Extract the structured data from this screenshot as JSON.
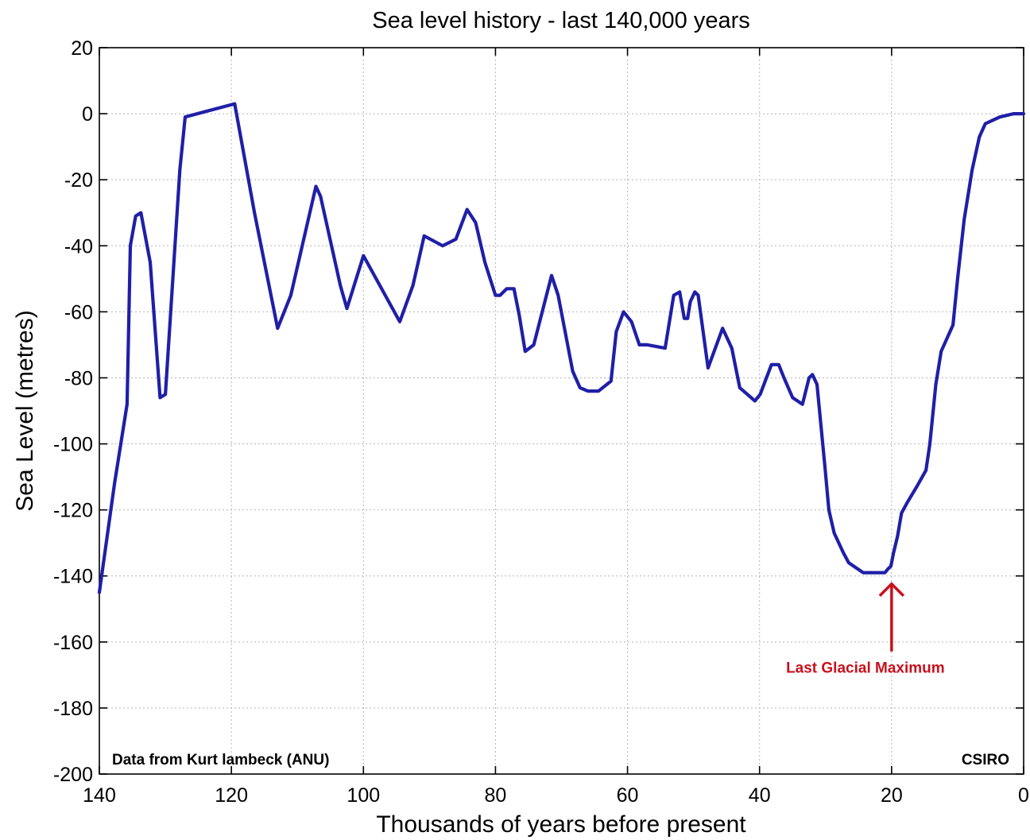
{
  "chart_data": {
    "type": "line",
    "title": "Sea level history - last 140,000 years",
    "xlabel": "Thousands of years before present",
    "ylabel": "Sea Level (metres)",
    "xlim": [
      140,
      0
    ],
    "ylim": [
      -200,
      20
    ],
    "x_ticks": [
      140,
      120,
      100,
      80,
      60,
      40,
      20,
      0
    ],
    "y_ticks": [
      20,
      0,
      -20,
      -40,
      -60,
      -80,
      -100,
      -120,
      -140,
      -160,
      -180,
      -200
    ],
    "grid": true,
    "series": [
      {
        "color": "#1f1fa8",
        "x": [
          140,
          137.7,
          136.2,
          135.8,
          135.3,
          134.5,
          133.7,
          132.3,
          130.8,
          130.0,
          127.8,
          127.0,
          119.5,
          116.5,
          113.0,
          111.0,
          107.2,
          106.5,
          103.5,
          102.5,
          100.0,
          94.5,
          92.5,
          90.8,
          88.0,
          86.0,
          84.3,
          83.0,
          81.6,
          80.0,
          79.3,
          78.3,
          77.2,
          76.4,
          75.5,
          74.2,
          71.5,
          70.5,
          68.3,
          67.2,
          66.0,
          64.4,
          62.5,
          61.7,
          60.6,
          59.4,
          58.2,
          57.0,
          54.3,
          53.0,
          52.1,
          51.4,
          50.9,
          50.5,
          49.8,
          49.3,
          47.8,
          45.6,
          44.2,
          43.0,
          40.7,
          39.9,
          38.2,
          37.1,
          36.3,
          35.0,
          33.5,
          32.5,
          32.0,
          31.3,
          30.1,
          29.5,
          28.7,
          27.3,
          26.5,
          24.3,
          21.0,
          20.6,
          20.1,
          19.7,
          19.1,
          18.5,
          17.7,
          16.2,
          14.8,
          14.2,
          13.3,
          12.5,
          10.7,
          10.0,
          9.0,
          7.8,
          6.7,
          5.8,
          3.6,
          1.5,
          0
        ],
        "y": [
          -145,
          -112,
          -93,
          -88,
          -40,
          -31,
          -30,
          -45,
          -86,
          -85,
          -17,
          -1,
          3,
          -30,
          -65,
          -55,
          -22,
          -25,
          -52,
          -59,
          -43,
          -63,
          -52,
          -37,
          -40,
          -38,
          -29,
          -33,
          -45,
          -55,
          -55,
          -53,
          -53,
          -61,
          -72,
          -70,
          -49,
          -55,
          -78,
          -83,
          -84,
          -84,
          -81,
          -66,
          -60,
          -63,
          -70,
          -70,
          -71,
          -55,
          -54,
          -62,
          -62,
          -57,
          -54,
          -55,
          -77,
          -65,
          -71,
          -83,
          -87,
          -85,
          -76,
          -76,
          -80,
          -86,
          -88,
          -80,
          -79,
          -82,
          -107,
          -120,
          -127,
          -133,
          -136,
          -139,
          -139,
          -138,
          -137,
          -133,
          -128,
          -121,
          -118,
          -113,
          -108,
          -100,
          -82,
          -72,
          -64,
          -50,
          -32,
          -17,
          -7,
          -3,
          -1,
          0,
          0
        ]
      }
    ],
    "notes": {
      "left": "Data from Kurt lambeck (ANU)",
      "right": "CSIRO"
    },
    "annotation": {
      "text": "Last Glacial Maximum",
      "x": 20,
      "y": -140,
      "color": "#c8111d"
    }
  }
}
